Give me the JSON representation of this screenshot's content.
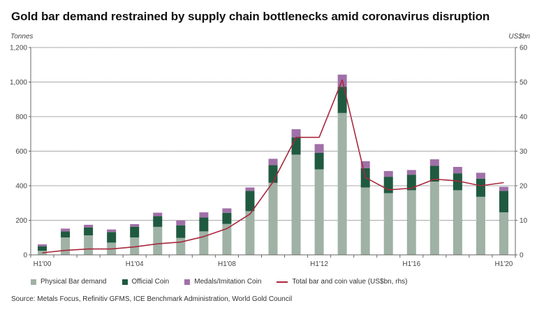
{
  "chart_data": {
    "type": "bar",
    "subtype": "stacked-bar-with-line",
    "title": "Gold bar demand restrained by supply chain bottlenecks amid coronavirus disruption",
    "ylabel_left": "Tonnes",
    "ylabel_right": "US$bn",
    "xlabel": "",
    "ylim_left": [
      0,
      1200
    ],
    "ylim_right": [
      0,
      60
    ],
    "yticks_left": [
      "0",
      "200",
      "400",
      "600",
      "800",
      "1,000",
      "1,200"
    ],
    "yticks_right": [
      "0",
      "10",
      "20",
      "30",
      "40",
      "50",
      "60"
    ],
    "grid": true,
    "legend_position": "bottom",
    "categories": [
      "H1'00",
      "H1'01",
      "H1'02",
      "H1'03",
      "H1'04",
      "H1'05",
      "H1'06",
      "H1'07",
      "H1'08",
      "H1'09",
      "H1'10",
      "H1'11",
      "H1'12",
      "H1'13",
      "H1'14",
      "H1'15",
      "H1'16",
      "H1'17",
      "H1'18",
      "H1'19",
      "H1'20"
    ],
    "xtick_labels": [
      "H1'00",
      "",
      "",
      "",
      "H1'04",
      "",
      "",
      "",
      "H1'08",
      "",
      "",
      "",
      "H1'12",
      "",
      "",
      "",
      "H1'16",
      "",
      "",
      "",
      "H1'20"
    ],
    "series": [
      {
        "name": "Physical Bar demand",
        "axis": "left",
        "kind": "bar",
        "color": "#9fb2a5",
        "values": [
          24,
          101,
          113,
          71,
          101,
          162,
          98,
          136,
          179,
          253,
          417,
          580,
          495,
          821,
          390,
          357,
          374,
          424,
          374,
          336,
          246
        ]
      },
      {
        "name": "Official Coin",
        "axis": "left",
        "kind": "bar",
        "color": "#1f5a40",
        "values": [
          26,
          35,
          46,
          61,
          62,
          62,
          73,
          80,
          64,
          117,
          102,
          100,
          95,
          152,
          112,
          95,
          90,
          91,
          98,
          105,
          124
        ]
      },
      {
        "name": "Medals/Imitation Coin",
        "axis": "left",
        "kind": "bar",
        "color": "#a070a8",
        "values": [
          11,
          16,
          15,
          15,
          15,
          20,
          28,
          30,
          26,
          20,
          37,
          47,
          51,
          70,
          40,
          33,
          27,
          38,
          37,
          34,
          24
        ]
      },
      {
        "name": "Total bar and coin value (US$bn, rhs)",
        "axis": "right",
        "kind": "line",
        "color": "#a8283c",
        "values": [
          0.6,
          1.3,
          1.7,
          1.7,
          2.3,
          3.2,
          3.7,
          5.3,
          7.6,
          11.8,
          21.1,
          34.0,
          34.0,
          50.6,
          22.4,
          18.8,
          19.3,
          21.9,
          21.4,
          20.0,
          20.9
        ]
      }
    ]
  },
  "legend": {
    "items": [
      {
        "label": "Physical Bar demand",
        "color": "#9fb2a5",
        "kind": "box"
      },
      {
        "label": "Official Coin",
        "color": "#1f5a40",
        "kind": "box"
      },
      {
        "label": "Medals/Imitation Coin",
        "color": "#a070a8",
        "kind": "box"
      },
      {
        "label": "Total bar and coin value (US$bn, rhs)",
        "color": "#a8283c",
        "kind": "line"
      }
    ]
  },
  "source": "Source: Metals Focus, Refinitiv GFMS, ICE Benchmark Administration, World Gold Council"
}
